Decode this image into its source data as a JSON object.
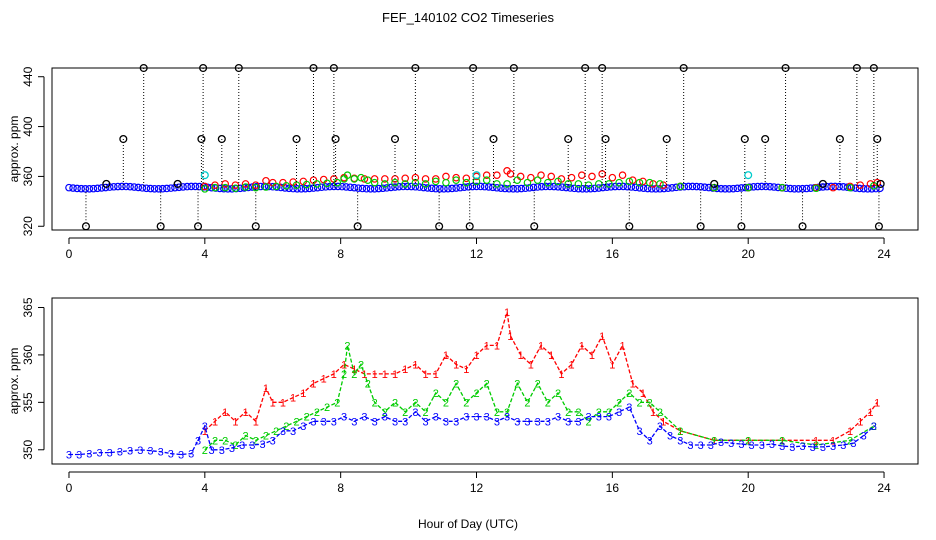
{
  "title": "FEF_140102  CO2 Timeseries",
  "colors": {
    "series1": "#ff0000",
    "series2": "#00cc00",
    "series3": "#0000ff",
    "black": "#000000",
    "cyan": "#00cccc"
  },
  "chart_data": [
    {
      "type": "scatter",
      "ylabel": "approx. ppm",
      "xlabel": "",
      "xlim": [
        -0.5,
        25
      ],
      "ylim": [
        317,
        447
      ],
      "xticks": [
        0,
        4,
        8,
        12,
        16,
        20,
        24
      ],
      "yticks": [
        320,
        360,
        400,
        440
      ],
      "series": [
        {
          "name": "black",
          "marker": "circle",
          "x": [
            0.5,
            1.1,
            1.6,
            2.2,
            2.7,
            3.2,
            3.8,
            3.9,
            3.95,
            4.5,
            5.0,
            5.5,
            6.7,
            7.2,
            7.8,
            7.85,
            8.5,
            9.6,
            10.2,
            10.9,
            11.8,
            11.9,
            12.5,
            13.1,
            13.7,
            14.7,
            15.2,
            15.7,
            15.8,
            16.5,
            17.6,
            18.1,
            18.6,
            19.0,
            19.8,
            19.9,
            20.5,
            21.1,
            21.6,
            22.2,
            22.7,
            23.2,
            23.7,
            23.8,
            23.85,
            23.9
          ],
          "values": [
            320,
            354,
            390,
            447,
            320,
            354,
            320,
            390,
            447,
            390,
            447,
            320,
            390,
            447,
            447,
            390,
            320,
            390,
            447,
            320,
            320,
            447,
            390,
            447,
            320,
            390,
            447,
            447,
            390,
            320,
            390,
            447,
            320,
            354,
            320,
            390,
            390,
            447,
            320,
            354,
            390,
            447,
            447,
            390,
            320,
            354
          ]
        },
        {
          "name": "cyan",
          "marker": "circle",
          "x": [
            4.0,
            12.0,
            20.0
          ],
          "values": [
            361,
            361,
            361
          ]
        }
      ],
      "note": "dense red/green/blue baseline traces near 350-362 ppm overlap with lower panel"
    },
    {
      "type": "line",
      "ylabel": "approx. ppm",
      "xlabel": "Hour of Day (UTC)",
      "xlim": [
        -0.5,
        25
      ],
      "ylim": [
        348.5,
        366
      ],
      "xticks": [
        0,
        4,
        8,
        12,
        16,
        20,
        24
      ],
      "yticks": [
        350,
        355,
        360,
        365
      ],
      "series": [
        {
          "name": "1",
          "color": "#ff0000",
          "x": [
            4.0,
            4.3,
            4.6,
            4.9,
            5.2,
            5.5,
            5.8,
            6.0,
            6.3,
            6.6,
            6.9,
            7.2,
            7.5,
            7.8,
            8.1,
            8.4,
            8.7,
            9.0,
            9.3,
            9.6,
            9.9,
            10.2,
            10.5,
            10.8,
            11.1,
            11.4,
            11.7,
            12.0,
            12.3,
            12.6,
            12.9,
            13.0,
            13.3,
            13.6,
            13.9,
            14.2,
            14.5,
            14.8,
            15.1,
            15.4,
            15.7,
            16.0,
            16.3,
            16.6,
            16.9,
            17.2,
            17.5,
            18.0,
            19.0,
            20.0,
            21.0,
            22.0,
            22.5,
            23.0,
            23.3,
            23.6,
            23.8
          ],
          "values": [
            352,
            353,
            354,
            353,
            354,
            353,
            356.5,
            355,
            355,
            355.5,
            356,
            357,
            357.5,
            358,
            359,
            358.5,
            358,
            358,
            358,
            358,
            358.5,
            359,
            358,
            358,
            360,
            359,
            358.5,
            360,
            361,
            361,
            364.5,
            362,
            360,
            359,
            361,
            360,
            358,
            359,
            361,
            360,
            362,
            359,
            361,
            357,
            356,
            354,
            353,
            352,
            351,
            351,
            351,
            351,
            351,
            352,
            353,
            354,
            355
          ]
        },
        {
          "name": "2",
          "color": "#00cc00",
          "x": [
            4.0,
            4.3,
            4.6,
            4.9,
            5.2,
            5.5,
            5.8,
            6.1,
            6.4,
            6.7,
            7.0,
            7.3,
            7.6,
            7.9,
            8.1,
            8.2,
            8.4,
            8.6,
            8.8,
            9.0,
            9.3,
            9.6,
            9.9,
            10.2,
            10.5,
            10.8,
            11.1,
            11.4,
            11.7,
            12.0,
            12.3,
            12.6,
            12.9,
            13.2,
            13.5,
            13.8,
            14.1,
            14.4,
            14.7,
            15.0,
            15.3,
            15.6,
            15.9,
            16.2,
            16.5,
            16.8,
            17.1,
            17.4,
            18.0,
            19.0,
            20.0,
            21.0,
            22.0,
            23.0,
            23.7
          ],
          "values": [
            350,
            351,
            351,
            350.5,
            351.5,
            351,
            351.5,
            352,
            352.5,
            353,
            353.5,
            354,
            354.5,
            355,
            358,
            361,
            358,
            359,
            357,
            355,
            354,
            355,
            354,
            355,
            354,
            356,
            355,
            357,
            355,
            356,
            357,
            354,
            354,
            357,
            355,
            357,
            355,
            356,
            354,
            354,
            353,
            354,
            354,
            355,
            356,
            355,
            355,
            354,
            352,
            351,
            351,
            351,
            350.5,
            351,
            352.5
          ]
        },
        {
          "name": "3",
          "color": "#0000ff",
          "x": [
            0.0,
            0.3,
            0.6,
            0.9,
            1.2,
            1.5,
            1.8,
            2.1,
            2.4,
            2.7,
            3.0,
            3.3,
            3.6,
            3.8,
            4.0,
            4.2,
            4.5,
            4.8,
            5.1,
            5.4,
            5.7,
            6.0,
            6.3,
            6.6,
            6.9,
            7.2,
            7.5,
            7.8,
            8.1,
            8.4,
            8.7,
            9.0,
            9.3,
            9.6,
            9.9,
            10.2,
            10.5,
            10.8,
            11.1,
            11.4,
            11.7,
            12.0,
            12.3,
            12.6,
            12.9,
            13.2,
            13.5,
            13.8,
            14.1,
            14.4,
            14.7,
            15.0,
            15.3,
            15.6,
            15.9,
            16.2,
            16.5,
            16.8,
            17.1,
            17.4,
            17.7,
            18.0,
            18.3,
            18.6,
            18.9,
            19.2,
            19.5,
            19.8,
            20.1,
            20.4,
            20.7,
            21.0,
            21.3,
            21.6,
            21.9,
            22.2,
            22.5,
            22.8,
            23.1,
            23.4,
            23.7
          ],
          "values": [
            349.5,
            349.5,
            349.6,
            349.7,
            349.7,
            349.8,
            349.9,
            350.0,
            349.9,
            349.8,
            349.6,
            349.5,
            349.6,
            351.0,
            352.5,
            350.0,
            350.0,
            350.2,
            350.5,
            350.5,
            350.6,
            351.0,
            352.0,
            352.0,
            352.5,
            353.0,
            353.0,
            353.0,
            353.5,
            353.0,
            353.5,
            353.0,
            353.5,
            353.0,
            353.0,
            354.0,
            353.0,
            353.5,
            353.0,
            353.0,
            353.5,
            353.5,
            353.5,
            353.0,
            353.5,
            353.0,
            353.0,
            353.0,
            353.0,
            353.5,
            353.0,
            353.0,
            353.5,
            353.5,
            353.5,
            354.0,
            354.5,
            352.0,
            351.0,
            352.5,
            351.5,
            351.0,
            350.5,
            350.5,
            350.5,
            350.8,
            350.7,
            350.6,
            350.5,
            350.5,
            350.6,
            350.4,
            350.3,
            350.4,
            350.3,
            350.3,
            350.4,
            350.5,
            350.7,
            351.5,
            352.5
          ]
        }
      ]
    }
  ]
}
